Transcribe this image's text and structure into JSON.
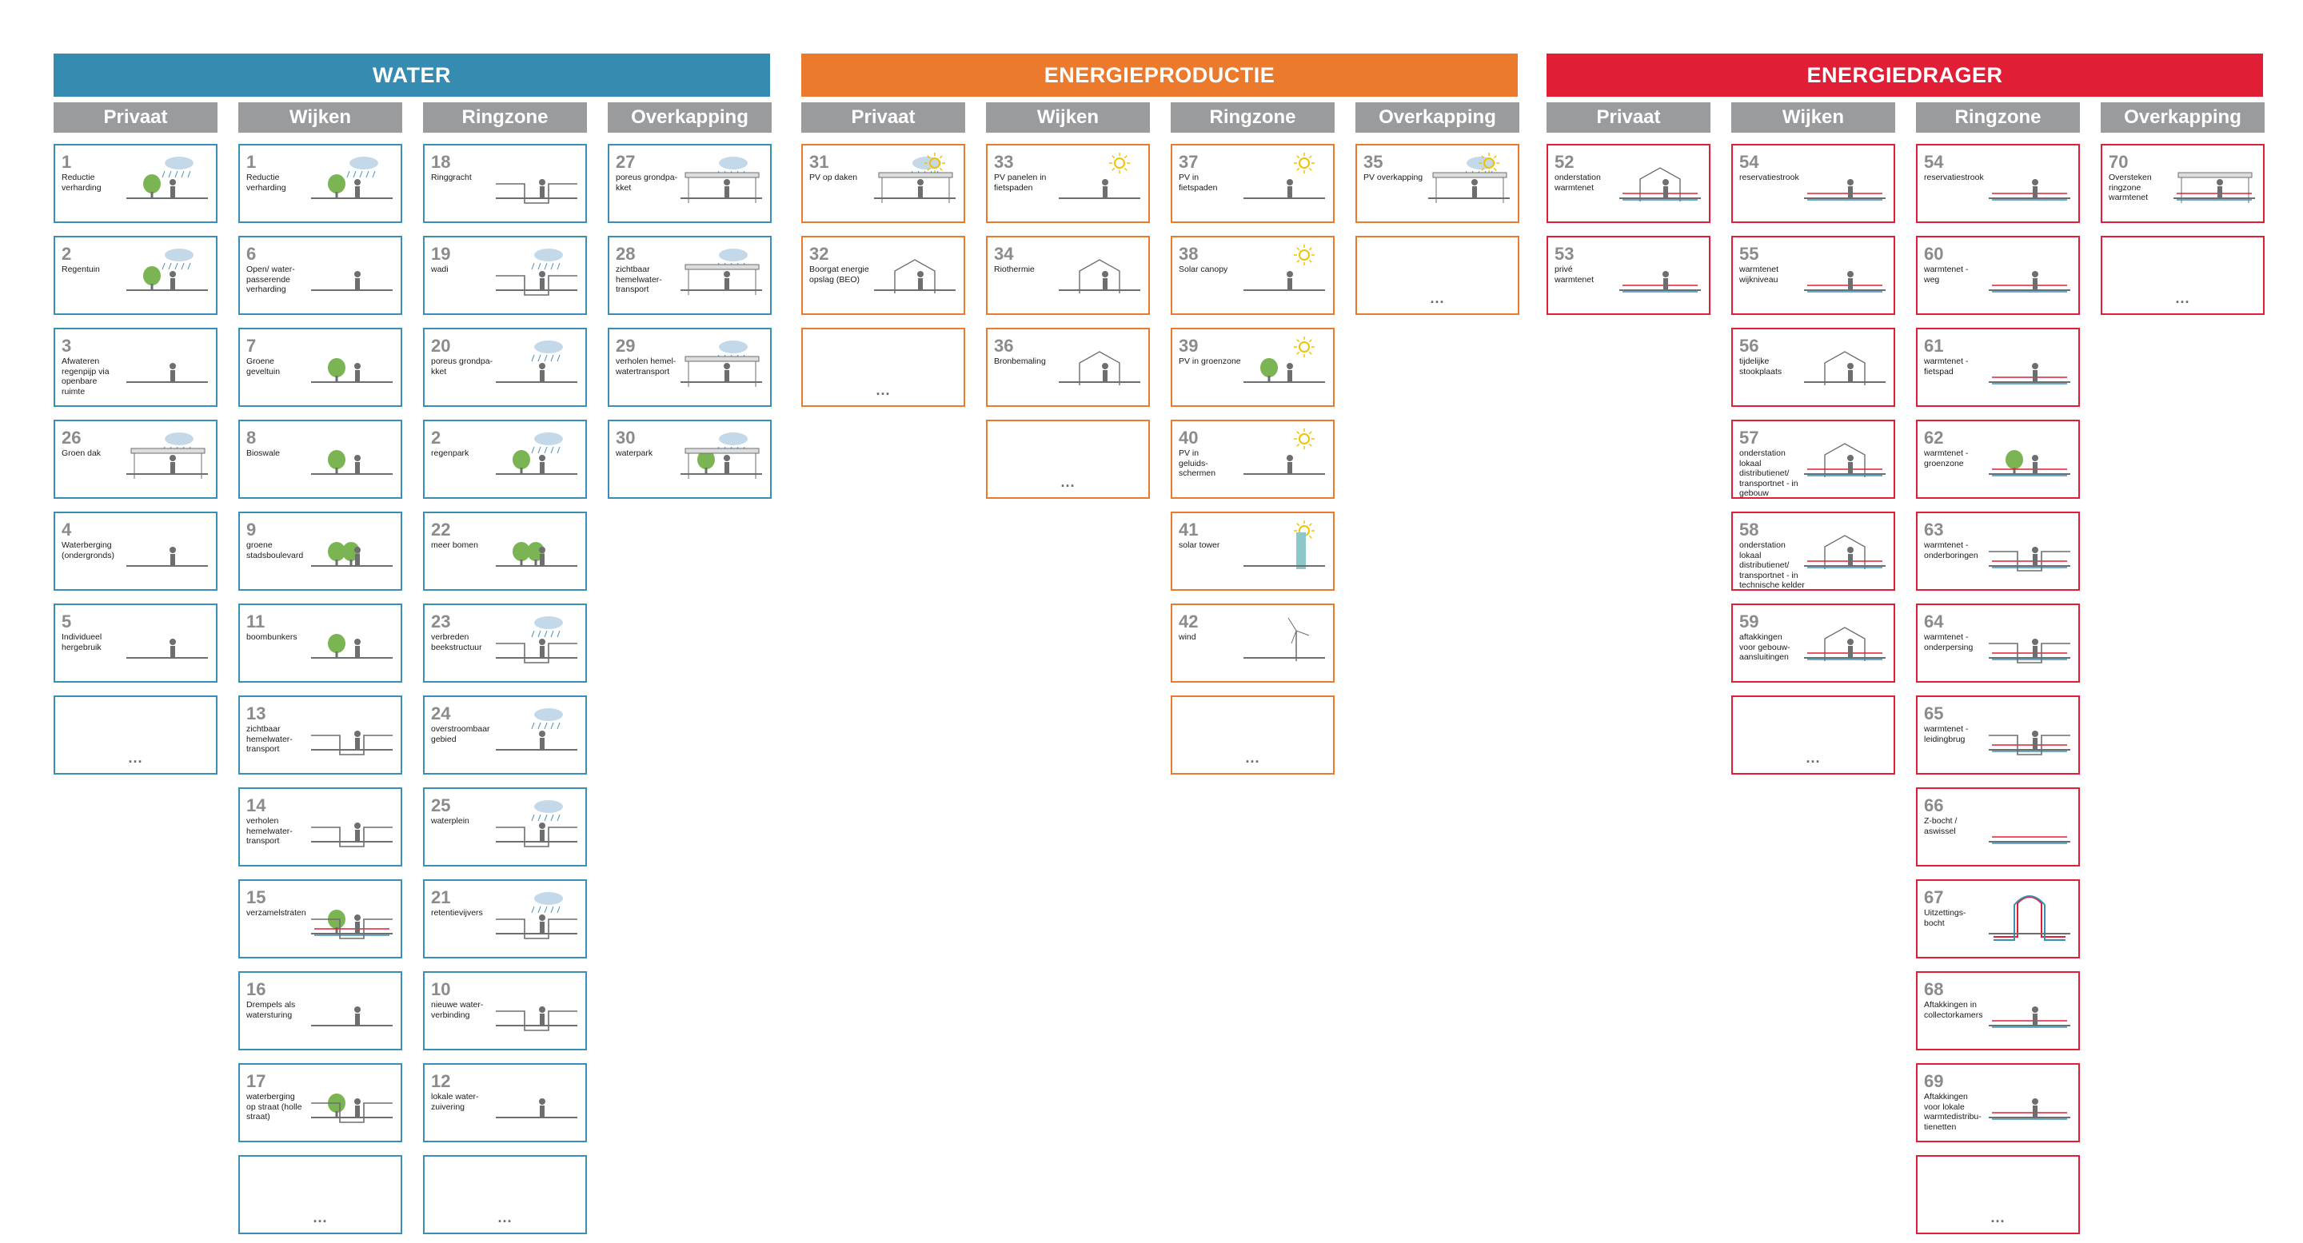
{
  "colors": {
    "water": "#358bb0",
    "energie": "#ec7a2c",
    "drager": "#e01e35",
    "sub": "#9a9b9d",
    "number": "#8a8b8d"
  },
  "groups": [
    {
      "title": "WATER",
      "color": "#358bb0",
      "theme": "blue",
      "columns": [
        {
          "label": "Privaat",
          "cards": [
            {
              "number": "1",
              "label": "Reductie\nverharding",
              "icon": "rain-paving-tree-icon"
            },
            {
              "number": "2",
              "label": "Regentuin",
              "icon": "rain-garden-icon"
            },
            {
              "number": "3",
              "label": "Afwateren\nregenpijp via\nopenbare\nruimte",
              "icon": "downpipe-icon"
            },
            {
              "number": "26",
              "label": "Groen dak",
              "icon": "green-roof-icon"
            },
            {
              "number": "4",
              "label": "Waterberging\n(ondergronds)",
              "icon": "underground-storage-icon"
            },
            {
              "number": "5",
              "label": "Individueel\nhergebruik",
              "icon": "reuse-toilet-icon"
            },
            {
              "number": "...",
              "label": "",
              "icon": ""
            }
          ]
        },
        {
          "label": "Wijken",
          "cards": [
            {
              "number": "1",
              "label": "Reductie\nverharding",
              "icon": "rain-paving-tree-icon"
            },
            {
              "number": "6",
              "label": "Open/ water-\npasserende\nverharding",
              "icon": "permeable-paving-car-icon"
            },
            {
              "number": "7",
              "label": "Groene\ngeveltuin",
              "icon": "facade-garden-icon"
            },
            {
              "number": "8",
              "label": "Bioswale",
              "icon": "bioswale-icon"
            },
            {
              "number": "9",
              "label": "groene\nstadsboulevard",
              "icon": "boulevard-trees-icon"
            },
            {
              "number": "11",
              "label": "boombunkers",
              "icon": "tree-bunker-icon"
            },
            {
              "number": "13",
              "label": "zichtbaar\nhemelwater-\ntransport",
              "icon": "open-gutter-icon"
            },
            {
              "number": "14",
              "label": "verholen\nhemelwater-\ntransport",
              "icon": "covered-gutter-icon"
            },
            {
              "number": "15",
              "label": "verzamelstraten",
              "icon": "collector-street-icon"
            },
            {
              "number": "16",
              "label": "Drempels als\nwatersturing",
              "icon": "speed-bump-icon"
            },
            {
              "number": "17",
              "label": "waterberging\nop straat (holle\nstraat)",
              "icon": "hollow-street-icon"
            },
            {
              "number": "...",
              "label": "",
              "icon": ""
            }
          ]
        },
        {
          "label": "Ringzone",
          "cards": [
            {
              "number": "18",
              "label": "Ringgracht",
              "icon": "ring-canal-icon"
            },
            {
              "number": "19",
              "label": "wadi",
              "icon": "wadi-icon"
            },
            {
              "number": "20",
              "label": "poreus grondpa-\nkket",
              "icon": "porous-soil-icon"
            },
            {
              "number": "2",
              "label": "regenpark",
              "icon": "rain-park-icon"
            },
            {
              "number": "22",
              "label": "meer bomen",
              "icon": "more-trees-icon"
            },
            {
              "number": "23",
              "label": "verbreden\nbeekstructuur",
              "icon": "stream-widening-icon"
            },
            {
              "number": "24",
              "label": "overstroombaar\ngebied",
              "icon": "floodable-area-icon"
            },
            {
              "number": "25",
              "label": "waterplein",
              "icon": "water-square-icon"
            },
            {
              "number": "21",
              "label": "retentievijvers",
              "icon": "retention-pond-icon"
            },
            {
              "number": "10",
              "label": "nieuwe water-\nverbinding",
              "icon": "water-connection-icon"
            },
            {
              "number": "12",
              "label": "lokale water-\nzuivering",
              "icon": "water-purification-icon"
            },
            {
              "number": "...",
              "label": "",
              "icon": ""
            }
          ]
        },
        {
          "label": "Overkapping",
          "cards": [
            {
              "number": "27",
              "label": "poreus grondpa-\nkket",
              "icon": "roof-porous-icon"
            },
            {
              "number": "28",
              "label": "zichtbaar\nhemelwater-\ntransport",
              "icon": "roof-visible-transport-icon"
            },
            {
              "number": "29",
              "label": "verholen hemel-\nwatertransport",
              "icon": "roof-hidden-transport-icon"
            },
            {
              "number": "30",
              "label": "waterpark",
              "icon": "roof-waterpark-icon"
            }
          ]
        }
      ]
    },
    {
      "title": "ENERGIEPRODUCTIE",
      "color": "#ec7a2c",
      "theme": "orange",
      "columns": [
        {
          "label": "Privaat",
          "cards": [
            {
              "number": "31",
              "label": "PV op daken",
              "icon": "pv-roof-sun-icon"
            },
            {
              "number": "32",
              "label": "Boorgat energie\nopslag (BEO)",
              "icon": "borehole-storage-icon"
            },
            {
              "number": "...",
              "label": "",
              "icon": ""
            }
          ]
        },
        {
          "label": "Wijken",
          "cards": [
            {
              "number": "33",
              "label": "PV panelen in\nfietspaden",
              "icon": "pv-bikepath-icon"
            },
            {
              "number": "34",
              "label": "Riothermie",
              "icon": "sewer-thermal-icon"
            },
            {
              "number": "36",
              "label": "Bronbemaling",
              "icon": "groundwater-pump-icon"
            },
            {
              "number": "...",
              "label": "",
              "icon": ""
            }
          ]
        },
        {
          "label": "Ringzone",
          "cards": [
            {
              "number": "37",
              "label": "PV in\nfietspaden",
              "icon": "pv-bikepath-icon"
            },
            {
              "number": "38",
              "label": "Solar canopy",
              "icon": "solar-canopy-icon"
            },
            {
              "number": "39",
              "label": "PV in groenzone",
              "icon": "pv-greenzone-icon"
            },
            {
              "number": "40",
              "label": "PV in\ngeluids-\nschermen",
              "icon": "pv-noise-barrier-icon"
            },
            {
              "number": "41",
              "label": "solar tower",
              "icon": "solar-tower-icon"
            },
            {
              "number": "42",
              "label": "wind",
              "icon": "wind-turbine-icon"
            },
            {
              "number": "...",
              "label": "",
              "icon": ""
            }
          ]
        },
        {
          "label": "Overkapping",
          "cards": [
            {
              "number": "35",
              "label": "PV overkapping",
              "icon": "pv-roof-cover-icon"
            },
            {
              "number": "...",
              "label": "",
              "icon": ""
            }
          ]
        }
      ]
    },
    {
      "title": "ENERGIEDRAGER",
      "color": "#e01e35",
      "theme": "red",
      "columns": [
        {
          "label": "Privaat",
          "cards": [
            {
              "number": "52",
              "label": "onderstation\nwarmtenet",
              "icon": "substation-pipes-icon"
            },
            {
              "number": "53",
              "label": "privé\nwarmtenet",
              "icon": "private-heat-grid-icon"
            }
          ]
        },
        {
          "label": "Wijken",
          "cards": [
            {
              "number": "54",
              "label": "reservatiestrook",
              "icon": "reservation-strip-icon"
            },
            {
              "number": "55",
              "label": "warmtenet\nwijkniveau",
              "icon": "district-heat-icon"
            },
            {
              "number": "56",
              "label": "tijdelijke\nstookplaats",
              "icon": "temporary-boiler-icon"
            },
            {
              "number": "57",
              "label": "onderstation lokaal\ndistributienet/\ntransportnet - in\ngebouw",
              "icon": "substation-building-icon"
            },
            {
              "number": "58",
              "label": "onderstation lokaal\ndistributienet/\ntransportnet - in\ntechnische kelder",
              "icon": "substation-basement-icon"
            },
            {
              "number": "59",
              "label": "aftakkingen\nvoor gebouw-\naansluitingen",
              "icon": "building-connections-icon"
            },
            {
              "number": "...",
              "label": "",
              "icon": ""
            }
          ]
        },
        {
          "label": "Ringzone",
          "cards": [
            {
              "number": "54",
              "label": "reservatiestrook",
              "icon": "reservation-strip-icon"
            },
            {
              "number": "60",
              "label": "warmtenet -\nweg",
              "icon": "heat-road-icon"
            },
            {
              "number": "61",
              "label": "warmtenet -\nfietspad",
              "icon": "heat-bikepath-icon"
            },
            {
              "number": "62",
              "label": "warmtenet -\ngroenzone",
              "icon": "heat-greenzone-icon"
            },
            {
              "number": "63",
              "label": "warmtenet -\nonderboringen",
              "icon": "heat-drilling-icon"
            },
            {
              "number": "64",
              "label": "warmtenet -\nonderpersing",
              "icon": "heat-pressing-icon"
            },
            {
              "number": "65",
              "label": "warmtenet -\nleidingbrug",
              "icon": "heat-pipe-bridge-icon"
            },
            {
              "number": "66",
              "label": "Z-bocht /\naswissel",
              "icon": "z-bend-icon"
            },
            {
              "number": "67",
              "label": "Uitzettings-\nbocht",
              "icon": "expansion-loop-icon"
            },
            {
              "number": "68",
              "label": "Aftakkingen in\ncollectorkamers",
              "icon": "collector-chambers-icon"
            },
            {
              "number": "69",
              "label": "Aftakkingen\nvoor lokale\nwarmtedistribu-\ntienetten",
              "icon": "local-branches-icon"
            },
            {
              "number": "...",
              "label": "",
              "icon": ""
            }
          ]
        },
        {
          "label": "Overkapping",
          "cards": [
            {
              "number": "70",
              "label": "Oversteken\nringzone\nwarmtenet",
              "icon": "ring-crossing-icon"
            },
            {
              "number": "...",
              "label": "",
              "icon": ""
            }
          ]
        }
      ]
    }
  ]
}
